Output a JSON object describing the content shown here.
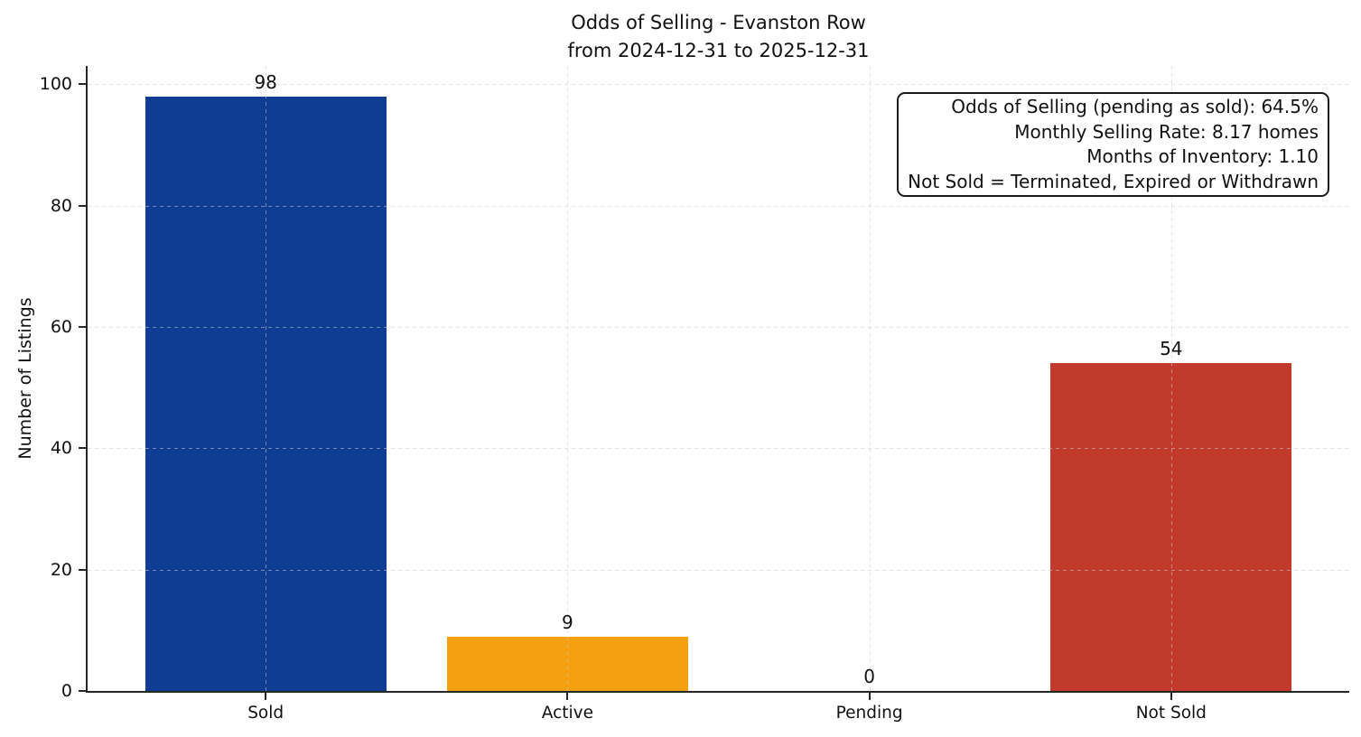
{
  "chart_data": {
    "type": "bar",
    "title": "Odds of Selling - Evanston Row",
    "subtitle": "from 2024-12-31 to 2025-12-31",
    "categories": [
      "Sold",
      "Active",
      "Pending",
      "Not Sold"
    ],
    "values": [
      98,
      9,
      0,
      54
    ],
    "value_labels": [
      "98",
      "9",
      "0",
      "54"
    ],
    "bar_colors": [
      "#0f3d94",
      "#f5a011",
      null,
      "#c23a2b"
    ],
    "xlabel": "",
    "ylabel": "Number of Listings",
    "yticks": [
      0,
      20,
      40,
      60,
      80,
      100
    ],
    "ylim": [
      0,
      103
    ],
    "grid": "dashed both axes, drawn above bars",
    "legend_position": "none",
    "annotation_box": {
      "position": "top-right",
      "lines": [
        "Odds of Selling (pending as sold): 64.5%",
        "Monthly Selling Rate: 8.17 homes",
        "Months of Inventory: 1.10",
        "Not Sold = Terminated, Expired or Withdrawn"
      ]
    }
  },
  "colors": {
    "sold_bar": "#0f3d94",
    "active_bar": "#f5a011",
    "not_sold_bar": "#c23a2b",
    "axis": "#262626",
    "grid": "#c9c9c9",
    "text": "#111111",
    "background": "#ffffff"
  }
}
